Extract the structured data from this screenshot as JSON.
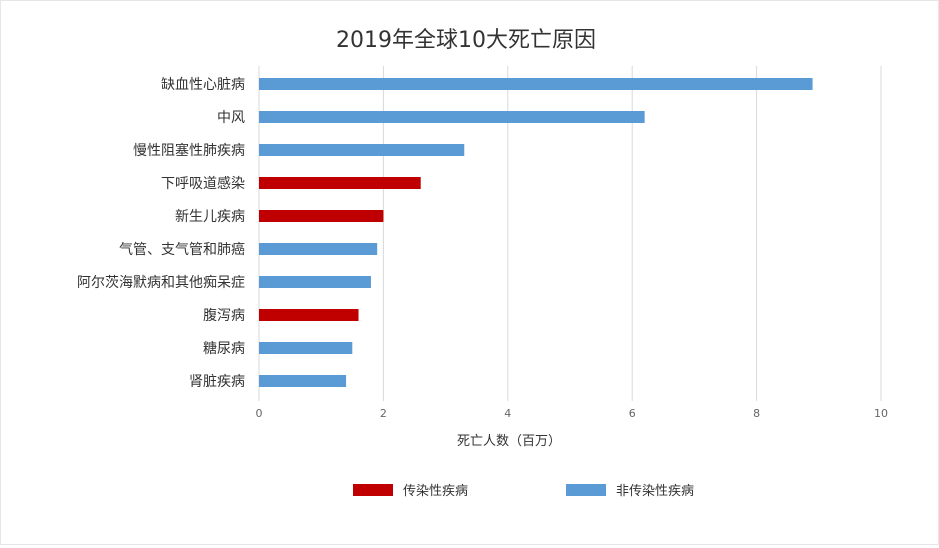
{
  "chart_data": {
    "type": "bar",
    "orientation": "horizontal",
    "title": "2019年全球10大死亡原因",
    "xlabel": "死亡人数（百万）",
    "ylabel": "",
    "xlim": [
      0,
      10
    ],
    "xticks": [
      "0",
      "2",
      "4",
      "6",
      "8",
      "10"
    ],
    "grid": "vertical",
    "legend_position": "bottom",
    "categories": [
      "缺血性心脏病",
      "中风",
      "慢性阻塞性肺疾病",
      "下呼吸道感染",
      "新生儿疾病",
      "气管、支气管和肺癌",
      "阿尔茨海默病和其他痴呆症",
      "腹泻病",
      "糖尿病",
      "肾脏疾病"
    ],
    "values": [
      8.9,
      6.2,
      3.3,
      2.6,
      2.0,
      1.9,
      1.8,
      1.6,
      1.5,
      1.4
    ],
    "groups": [
      "非传染性疾病",
      "非传染性疾病",
      "非传染性疾病",
      "传染性疾病",
      "传染性疾病",
      "非传染性疾病",
      "非传染性疾病",
      "传染性疾病",
      "非传染性疾病",
      "非传染性疾病"
    ],
    "legend": [
      {
        "name": "传染性疾病",
        "color": "#c00000"
      },
      {
        "name": "非传染性疾病",
        "color": "#5b9bd5"
      }
    ]
  }
}
